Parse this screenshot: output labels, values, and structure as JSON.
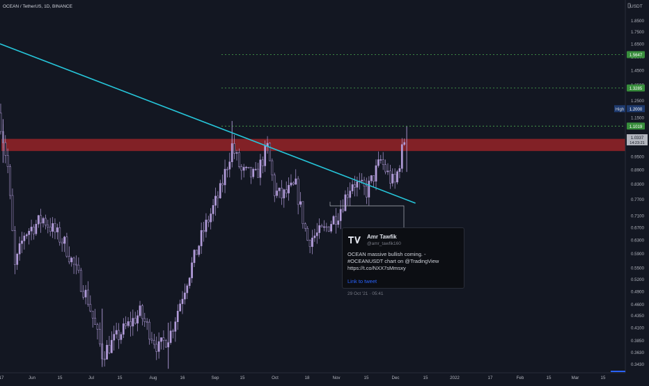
{
  "header": {
    "symbol_text": "OCEAN / TetherUS, 1D, BINANCE",
    "currency": "USDT"
  },
  "chart_data": {
    "type": "candlestick",
    "y_scale": "log",
    "ylim": [
      0.333,
      1.95
    ],
    "y_ticks": [
      "1.8500",
      "1.7500",
      "1.6500",
      "1.5500",
      "1.4500",
      "1.3500",
      "1.2500",
      "1.1500",
      "1.0500",
      "0.9500",
      "0.8900",
      "0.8300",
      "0.7700",
      "0.7100",
      "0.6700",
      "0.6300",
      "0.5900",
      "0.5500",
      "0.5200",
      "0.4900",
      "0.4600",
      "0.4350",
      "0.4100",
      "0.3850",
      "0.3630",
      "0.3430"
    ],
    "x_ticks": [
      "17",
      "Jun",
      "15",
      "Jul",
      "15",
      "Aug",
      "16",
      "Sep",
      "15",
      "Oct",
      "18",
      "Nov",
      "15",
      "Dec",
      "15",
      "2022",
      "17",
      "Feb",
      "15",
      "Mar",
      "15"
    ],
    "series_color": "#b39ddb",
    "resistance_zone": {
      "from": 0.975,
      "to": 1.035,
      "color": "#c62828"
    },
    "trendline": {
      "start": [
        "2021-05-14",
        1.65
      ],
      "end": [
        "2021-11-06",
        0.755
      ],
      "color": "#26c6da"
    },
    "target_levels": [
      {
        "value": 1.5647,
        "label": "1.5647",
        "color": "#4caf50"
      },
      {
        "value": 1.3285,
        "label": "1.3285",
        "color": "#4caf50"
      },
      {
        "value": 1.1019,
        "label": "1.1019",
        "color": "#4caf50"
      }
    ],
    "high_marker": {
      "label": "High",
      "value": "1.2000"
    },
    "last_price": {
      "value": "1.0337",
      "countdown": "14:23:21"
    },
    "waypoints": [
      {
        "date": "2021-05-14",
        "price": 1.12
      },
      {
        "date": "2021-05-17",
        "price": 0.9
      },
      {
        "date": "2021-05-20",
        "price": 0.55
      },
      {
        "date": "2021-05-24",
        "price": 0.65
      },
      {
        "date": "2021-06-01",
        "price": 0.7
      },
      {
        "date": "2021-06-10",
        "price": 0.62
      },
      {
        "date": "2021-06-20",
        "price": 0.47
      },
      {
        "date": "2021-06-26",
        "price": 0.36
      },
      {
        "date": "2021-07-04",
        "price": 0.4
      },
      {
        "date": "2021-07-12",
        "price": 0.44
      },
      {
        "date": "2021-07-20",
        "price": 0.37
      },
      {
        "date": "2021-07-25",
        "price": 0.4
      },
      {
        "date": "2021-08-01",
        "price": 0.52
      },
      {
        "date": "2021-08-08",
        "price": 0.66
      },
      {
        "date": "2021-08-15",
        "price": 0.8
      },
      {
        "date": "2021-08-20",
        "price": 1.0
      },
      {
        "date": "2021-08-24",
        "price": 0.88
      },
      {
        "date": "2021-08-30",
        "price": 0.86
      },
      {
        "date": "2021-09-04",
        "price": 0.99
      },
      {
        "date": "2021-09-07",
        "price": 0.8
      },
      {
        "date": "2021-09-10",
        "price": 0.78
      },
      {
        "date": "2021-09-16",
        "price": 0.82
      },
      {
        "date": "2021-09-21",
        "price": 0.63
      },
      {
        "date": "2021-09-28",
        "price": 0.66
      },
      {
        "date": "2021-10-04",
        "price": 0.72
      },
      {
        "date": "2021-10-10",
        "price": 0.84
      },
      {
        "date": "2021-10-16",
        "price": 0.8
      },
      {
        "date": "2021-10-22",
        "price": 0.93
      },
      {
        "date": "2021-10-26",
        "price": 0.85
      },
      {
        "date": "2021-10-28",
        "price": 0.83
      },
      {
        "date": "2021-11-01",
        "price": 1.03
      }
    ]
  },
  "tweet": {
    "author": "Amr Tawfik",
    "handle": "@amr_tawfik160",
    "text": "OCEAN massive bullish coming. - #OCEANUSDT chart on @TradingView https://t.co/NXX7sMmsxy",
    "link_label": "Link to tweet",
    "date": "29 Oct '21 · 05:41"
  }
}
